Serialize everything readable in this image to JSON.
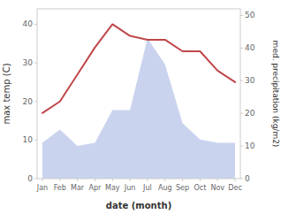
{
  "chart_data": {
    "type": "line",
    "categories": [
      "Jan",
      "Feb",
      "Mar",
      "Apr",
      "May",
      "Jun",
      "Jul",
      "Aug",
      "Sep",
      "Oct",
      "Nov",
      "Dec"
    ],
    "series": [
      {
        "type": "area",
        "axis": "y2",
        "color": "#b8c4e8",
        "values": [
          11,
          15,
          10,
          11,
          21,
          21,
          43,
          35,
          17,
          12,
          11,
          11
        ]
      },
      {
        "type": "line",
        "color": "#c0474a",
        "values": [
          17,
          20,
          27,
          34,
          40,
          37,
          36,
          36,
          33,
          33,
          28,
          25
        ]
      }
    ],
    "x_label": "date (month)",
    "y_label": "max temp (C)",
    "y2_label": "med. precipitation (kg/m2)",
    "ylim": [
      0,
      44
    ],
    "yticks": [
      0,
      10,
      20,
      30,
      40
    ],
    "y2lim": [
      0,
      52
    ],
    "y2ticks": [
      0,
      10,
      20,
      30,
      40,
      50
    ],
    "grid": false
  }
}
